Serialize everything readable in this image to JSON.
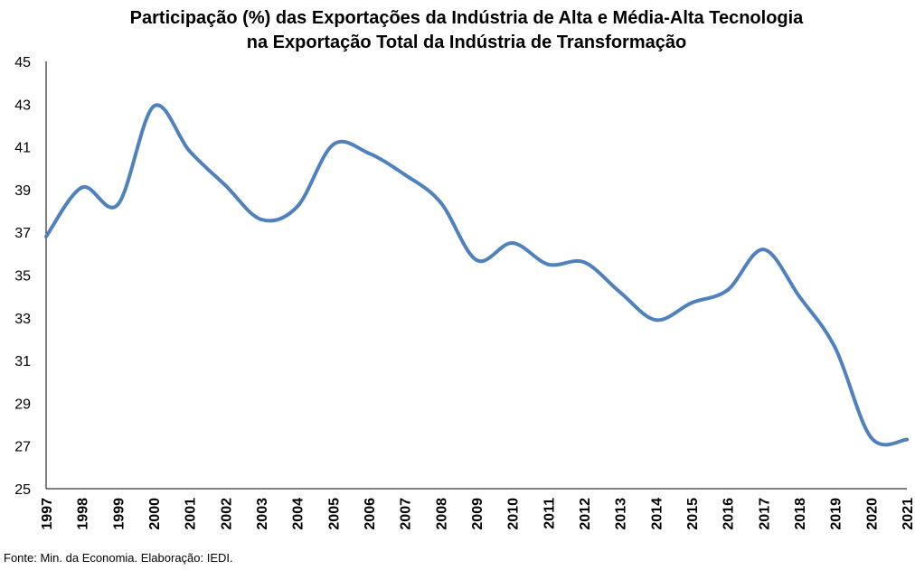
{
  "chart_data": {
    "type": "line",
    "title_line1": "Participação (%) das Exportações da Indústria de Alta e Média-Alta Tecnologia",
    "title_line2": "na Exportação Total da Indústria de Transformação",
    "xlabel": "",
    "ylabel": "",
    "ylim": [
      25,
      45
    ],
    "yticks": [
      25,
      27,
      29,
      31,
      33,
      35,
      37,
      39,
      41,
      43,
      45
    ],
    "categories": [
      "1997",
      "1998",
      "1999",
      "2000",
      "2001",
      "2002",
      "2003",
      "2004",
      "2005",
      "2006",
      "2007",
      "2008",
      "2009",
      "2010",
      "2011",
      "2012",
      "2013",
      "2014",
      "2015",
      "2016",
      "2017",
      "2018",
      "2019",
      "2020",
      "2021"
    ],
    "series": [
      {
        "values": [
          36.8,
          39.1,
          38.3,
          42.9,
          40.8,
          39.2,
          37.6,
          38.2,
          41.1,
          40.7,
          39.7,
          38.4,
          35.7,
          36.5,
          35.5,
          35.6,
          34.2,
          32.9,
          33.7,
          34.3,
          36.2,
          34.0,
          31.6,
          27.4,
          27.3
        ],
        "color": "#4f81bd"
      }
    ],
    "grid": false,
    "legend": "none"
  },
  "footer": {
    "source": "Fonte: Min. da Economia. Elaboração: IEDI."
  }
}
